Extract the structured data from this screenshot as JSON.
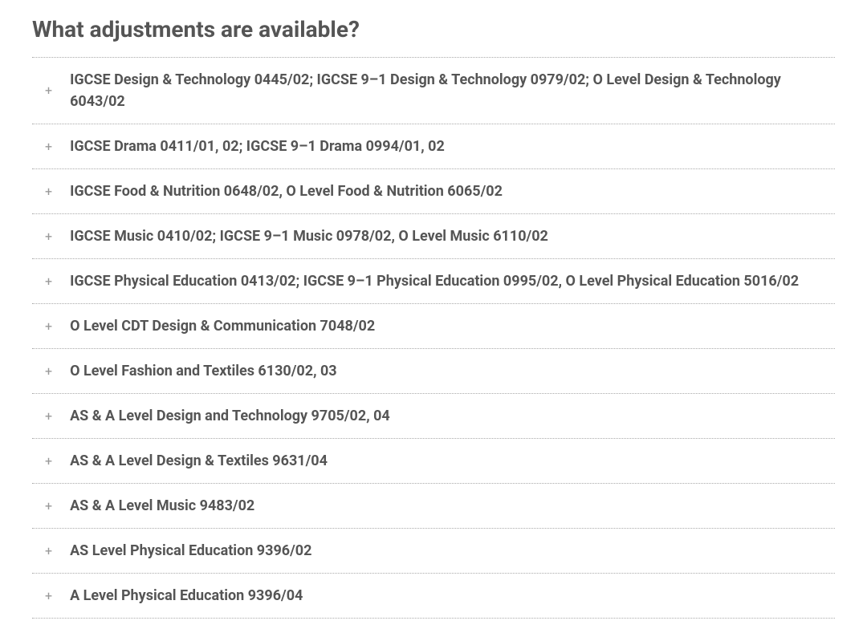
{
  "title": "What adjustments are available?",
  "items": [
    {
      "label": "IGCSE Design & Technology 0445/02; IGCSE 9–1 Design & Technology 0979/02; O Level Design & Technology 6043/02"
    },
    {
      "label": "IGCSE Drama 0411/01, 02; IGCSE 9–1 Drama 0994/01, 02"
    },
    {
      "label": "IGCSE Food & Nutrition 0648/02, O Level Food & Nutrition 6065/02"
    },
    {
      "label": "IGCSE Music 0410/02; IGCSE 9–1 Music 0978/02, O Level Music 6110/02"
    },
    {
      "label": "IGCSE Physical Education 0413/02; IGCSE 9–1 Physical Education 0995/02, O Level Physical Education 5016/02"
    },
    {
      "label": "O Level CDT Design & Communication 7048/02"
    },
    {
      "label": "O Level Fashion and Textiles 6130/02, 03"
    },
    {
      "label": "AS & A Level Design and Technology 9705/02, 04"
    },
    {
      "label": "AS & A Level Design & Textiles 9631/04"
    },
    {
      "label": "AS & A Level Music 9483/02"
    },
    {
      "label": "AS Level Physical Education 9396/02"
    },
    {
      "label": "A Level Physical Education 9396/04"
    }
  ],
  "expand_symbol": "+"
}
